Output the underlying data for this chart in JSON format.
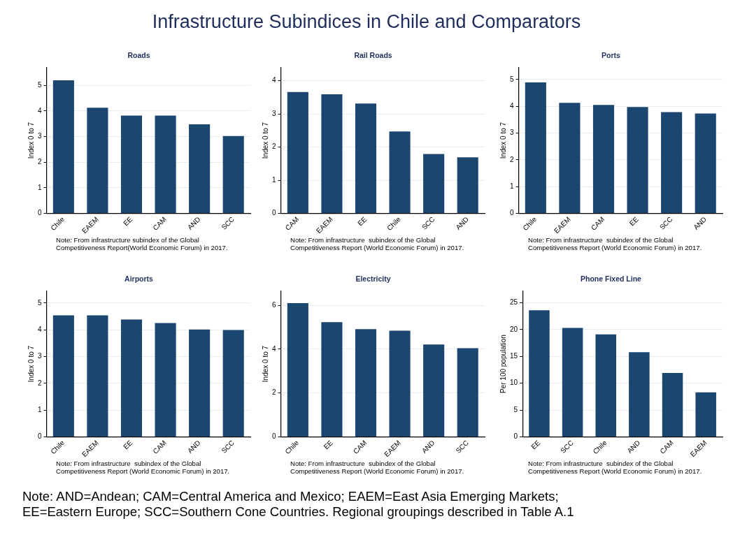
{
  "chart_data": [
    {
      "type": "other",
      "title": "Infrastructure Subindices in Chile and Comparators"
    },
    {
      "type": "bar",
      "title": "Roads",
      "ylabel": "Index 0 to 7",
      "categories": [
        "Chile",
        "EAEM",
        "EE",
        "CAM",
        "AND",
        "SCC"
      ],
      "values": [
        5.2,
        4.13,
        3.82,
        3.82,
        3.48,
        3.02
      ],
      "color": "#1b4670",
      "ylim": [
        0,
        5.7
      ],
      "yticks": [
        0,
        1,
        2,
        3,
        4,
        5
      ],
      "grid": "y",
      "annotations": [
        "Note: From infrastructure subindex of the Global\nCompetitiveness Report(World Economic Forum) in 2017."
      ]
    },
    {
      "type": "bar",
      "title": "Rail Roads",
      "ylabel": "Index 0 to 7",
      "categories": [
        "CAM",
        "EAEM",
        "EE",
        "Chile",
        "SCC",
        "AND"
      ],
      "values": [
        3.66,
        3.59,
        3.31,
        2.47,
        1.79,
        1.69
      ],
      "color": "#1b4670",
      "ylim": [
        0,
        4.4
      ],
      "yticks": [
        0,
        1,
        2,
        3,
        4
      ],
      "grid": "y",
      "annotations": [
        "Note: From infrastructure  subindex of the Global\nCompetitiveness Report (World Economic Forum) in 2017."
      ]
    },
    {
      "type": "bar",
      "title": "Ports",
      "ylabel": "Index 0 to 7",
      "categories": [
        "Chile",
        "EAEM",
        "CAM",
        "EE",
        "SCC",
        "AND"
      ],
      "values": [
        4.89,
        4.13,
        4.05,
        3.97,
        3.78,
        3.73
      ],
      "color": "#1b4670",
      "ylim": [
        0,
        5.45
      ],
      "yticks": [
        0,
        1,
        2,
        3,
        4,
        5
      ],
      "grid": "y",
      "annotations": [
        "Note: From infrastructure  subindex of the Global\nCompetitiveness Report (World Economic Forum) in 2017."
      ]
    },
    {
      "type": "bar",
      "title": "Airports",
      "ylabel": "Index 0 to 7",
      "categories": [
        "Chile",
        "EAEM",
        "EE",
        "CAM",
        "AND",
        "SCC"
      ],
      "values": [
        4.54,
        4.54,
        4.38,
        4.25,
        4.01,
        3.99
      ],
      "color": "#1b4670",
      "ylim": [
        0,
        5.45
      ],
      "yticks": [
        0,
        1,
        2,
        3,
        4,
        5
      ],
      "grid": "y",
      "annotations": [
        "Note: From infrastructure  subindex of the Global\nCompetitiveness Report (World Economic Forum) in 2017."
      ]
    },
    {
      "type": "bar",
      "title": "Electricity",
      "ylabel": "Index 0 to 7",
      "categories": [
        "Chile",
        "EE",
        "CAM",
        "EAEM",
        "AND",
        "SCC"
      ],
      "values": [
        6.1,
        5.23,
        4.91,
        4.84,
        4.21,
        4.04
      ],
      "color": "#1b4670",
      "ylim": [
        0,
        6.65
      ],
      "yticks": [
        0,
        2,
        4,
        6
      ],
      "grid": "y",
      "annotations": [
        "Note: From infrastructure  subindex of the Global\nCompetitiveness Report (World Economic Forum) in 2017."
      ]
    },
    {
      "type": "bar",
      "title": "Phone Fixed Line",
      "ylabel": "Per 100 population",
      "categories": [
        "EE",
        "SCC",
        "Chile",
        "AND",
        "CAM",
        "EAEM"
      ],
      "values": [
        23.6,
        20.3,
        19.1,
        15.8,
        11.9,
        8.3
      ],
      "color": "#1b4670",
      "ylim": [
        0,
        27.2
      ],
      "yticks": [
        0,
        5,
        10,
        15,
        20,
        25
      ],
      "grid": "y",
      "annotations": [
        "Note: From infrastructure  subindex of the Global\nCompetitiveness Report (World Economic Forum) in 2017."
      ]
    },
    {
      "type": "other",
      "annotations": [
        "Note: AND=Andean; CAM=Central America and Mexico; EAEM=East Asia Emerging Markets;\nEE=Eastern Europe; SCC=Southern Cone Countries. Regional groupings described in Table A.1"
      ]
    }
  ]
}
